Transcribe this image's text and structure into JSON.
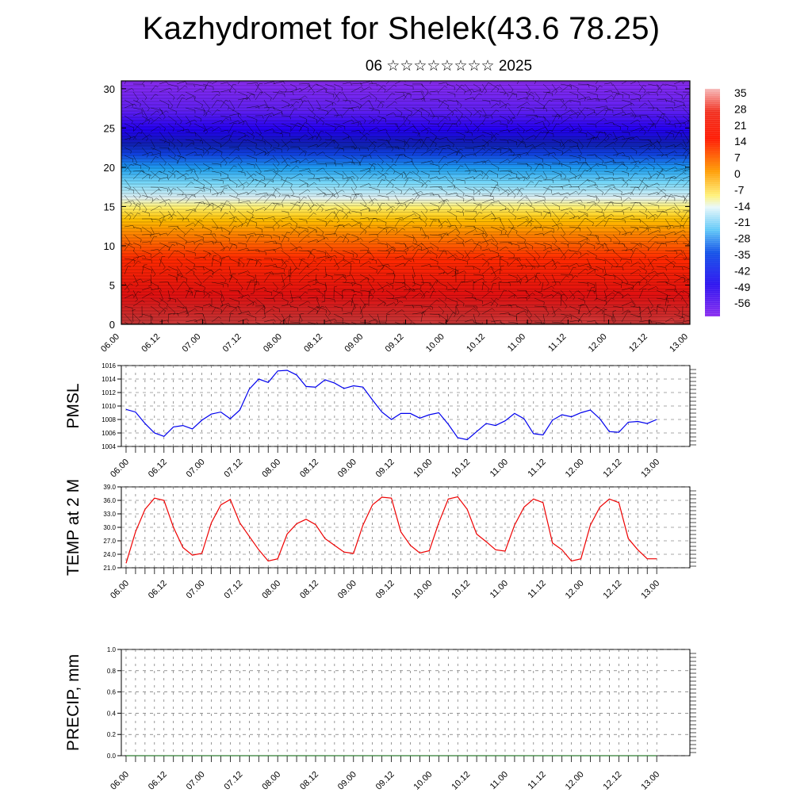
{
  "title": "Kazhydromet for Shelek(43.6 78.25)",
  "subtitle": "06 ☆☆☆☆☆☆☆☆ 2025",
  "time_labels": [
    "06.00",
    "06.12",
    "07.00",
    "07.12",
    "08.00",
    "08.12",
    "09.00",
    "09.12",
    "10.00",
    "10.12",
    "11.00",
    "11.12",
    "12.00",
    "12.12",
    "13.00"
  ],
  "chart_data": [
    {
      "type": "heatmap",
      "title": "",
      "xlabel": "",
      "ylabel": "",
      "y_ticks": [
        0,
        5,
        10,
        15,
        20,
        25,
        30
      ],
      "ylim": [
        0,
        31
      ],
      "colorbar_ticks": [
        "35",
        "28",
        "21",
        "14",
        "7",
        "0",
        "-7",
        "-14",
        "-21",
        "-28",
        "-35",
        "-42",
        "-49",
        "-56"
      ],
      "colorbar_range": [
        -60,
        38
      ],
      "surface_warm_centers": [
        0.75,
        1.75,
        3.75,
        4.75,
        5.75,
        6.75
      ],
      "overlay": "wind barbs"
    },
    {
      "type": "line",
      "ylabel": "PMSL",
      "ylim": [
        1004,
        1016
      ],
      "y_ticks": [
        "1004",
        "1006",
        "1008",
        "1010",
        "1012",
        "1014",
        "1016"
      ],
      "color": "#0000ee",
      "values": [
        1009.5,
        1009.1,
        1007.4,
        1006.0,
        1005.5,
        1006.9,
        1007.1,
        1006.6,
        1007.9,
        1008.8,
        1009.1,
        1008.1,
        1009.4,
        1012.5,
        1014.0,
        1013.5,
        1015.2,
        1015.3,
        1014.6,
        1012.9,
        1012.8,
        1013.9,
        1013.4,
        1012.6,
        1013.0,
        1012.8,
        1010.9,
        1009.1,
        1008.0,
        1008.9,
        1008.9,
        1008.2,
        1008.7,
        1009.0,
        1007.3,
        1005.3,
        1005.0,
        1006.2,
        1007.4,
        1007.1,
        1007.8,
        1008.9,
        1008.1,
        1005.9,
        1005.7,
        1007.9,
        1008.7,
        1008.4,
        1009.0,
        1009.4,
        1008.1,
        1006.2,
        1006.1,
        1007.6,
        1007.7,
        1007.4,
        1008.0
      ]
    },
    {
      "type": "line",
      "ylabel": "TEMP at 2 M",
      "ylim": [
        21,
        39
      ],
      "y_ticks": [
        "21.0",
        "24.0",
        "27.0",
        "30.0",
        "33.0",
        "36.0",
        "39.0"
      ],
      "color": "#ee0000",
      "values": [
        22.0,
        29.0,
        34.0,
        36.5,
        36.0,
        30.0,
        25.5,
        23.8,
        24.2,
        31.0,
        35.0,
        36.2,
        31.0,
        28.0,
        25.0,
        22.5,
        23.0,
        28.5,
        30.8,
        31.8,
        30.6,
        27.5,
        26.0,
        24.5,
        24.2,
        30.5,
        35.0,
        36.7,
        36.5,
        29.0,
        26.0,
        24.3,
        24.8,
        31.0,
        36.3,
        36.8,
        34.0,
        28.5,
        26.8,
        25.0,
        24.7,
        30.5,
        34.5,
        36.3,
        35.5,
        26.5,
        25.0,
        22.5,
        23.0,
        30.5,
        34.5,
        36.3,
        35.5,
        27.5,
        25.0,
        23.0,
        23.0
      ]
    },
    {
      "type": "line",
      "ylabel": "PRECIP, mm",
      "ylim": [
        0,
        1
      ],
      "y_ticks": [
        "0.0",
        "0.2",
        "0.4",
        "0.6",
        "0.8",
        "1.0"
      ],
      "color": "#2e7d32",
      "values": [
        0,
        0,
        0,
        0,
        0,
        0,
        0,
        0,
        0,
        0,
        0,
        0,
        0,
        0,
        0,
        0,
        0,
        0,
        0,
        0,
        0,
        0,
        0,
        0,
        0,
        0,
        0,
        0,
        0,
        0,
        0,
        0,
        0,
        0,
        0,
        0,
        0,
        0,
        0,
        0,
        0,
        0,
        0,
        0,
        0,
        0,
        0,
        0,
        0,
        0,
        0,
        0,
        0,
        0,
        0,
        0,
        0
      ]
    }
  ]
}
